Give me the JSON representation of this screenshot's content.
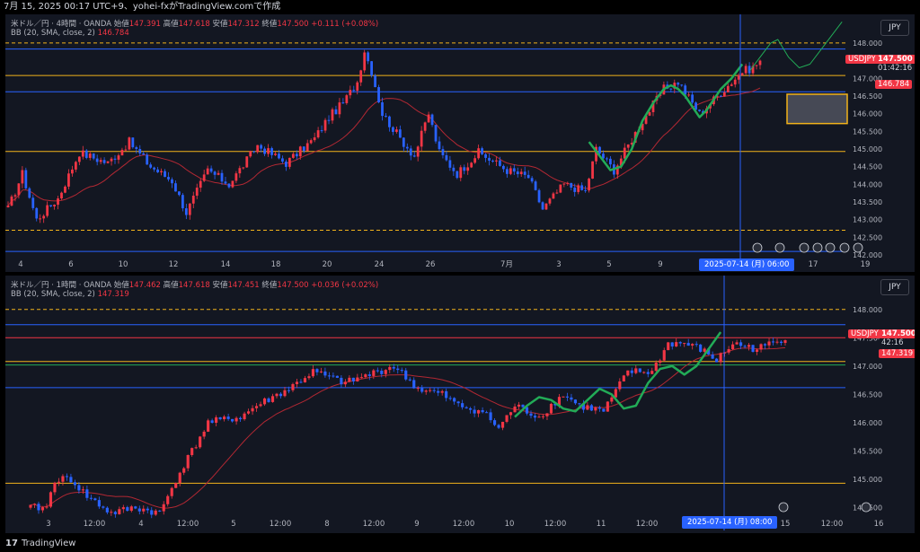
{
  "header": {
    "title": "7月 15, 2025 00:17 UTC+9、yohei-fxがTradingView.comで作成"
  },
  "footer": {
    "logo": "17",
    "brand": "TradingView"
  },
  "colors": {
    "background": "#131722",
    "up": "#f23645",
    "down": "#2962ff",
    "bb_basis": "#b22833",
    "forecast": "#22ab57",
    "support": "#f2b31b",
    "level": "#2962ff"
  },
  "chart_data": [
    {
      "type": "candlestick",
      "panel": "top",
      "legend": {
        "symbol": "米ドル／円 · 4時間 · OANDA",
        "open_label": "始値",
        "open": "147.391",
        "high_label": "高値",
        "high": "147.618",
        "low_label": "安値",
        "low": "147.312",
        "close_label": "終値",
        "close": "147.500",
        "change": "+0.111 (+0.08%)",
        "indicator": "BB (20, SMA, close, 2)",
        "indicator_value": "146.784"
      },
      "currency_button": "JPY",
      "price_ticks": [
        "148.000",
        "147.000",
        "146.500",
        "146.000",
        "145.500",
        "145.000",
        "144.500",
        "144.000",
        "143.500",
        "143.000",
        "142.500",
        "142.000"
      ],
      "ylim": [
        142.0,
        148.1
      ],
      "x_ticks": [
        "4",
        "6",
        "10",
        "12",
        "14",
        "18",
        "20",
        "24",
        "26",
        "7月",
        "3",
        "5",
        "9",
        "17",
        "19"
      ],
      "cursor_label": "2025-07-14 (月)   06:00",
      "tags": {
        "symbol": "USDJPY",
        "price": "147.500",
        "timer": "01:42:16",
        "bb": "146.784"
      },
      "levels": [
        {
          "kind": "dashed",
          "price": 148.0,
          "color": "#f2b31b"
        },
        {
          "kind": "solid",
          "price": 147.83,
          "color": "#2962ff"
        },
        {
          "kind": "solid",
          "price": 147.08,
          "color": "#f2b31b"
        },
        {
          "kind": "solid",
          "price": 146.62,
          "color": "#2962ff"
        },
        {
          "kind": "solid",
          "price": 144.93,
          "color": "#f2b31b"
        },
        {
          "kind": "dashed",
          "price": 142.7,
          "color": "#f2b31b"
        },
        {
          "kind": "solid",
          "price": 142.1,
          "color": "#2962ff"
        }
      ],
      "anchors": [
        [
          0,
          143.3
        ],
        [
          4,
          144.3
        ],
        [
          8,
          143.0
        ],
        [
          14,
          143.6
        ],
        [
          20,
          144.9
        ],
        [
          28,
          144.6
        ],
        [
          34,
          145.2
        ],
        [
          40,
          144.5
        ],
        [
          46,
          144.1
        ],
        [
          50,
          143.2
        ],
        [
          56,
          144.4
        ],
        [
          62,
          144.0
        ],
        [
          70,
          145.1
        ],
        [
          78,
          144.6
        ],
        [
          86,
          145.3
        ],
        [
          90,
          145.9
        ],
        [
          94,
          146.3
        ],
        [
          98,
          146.9
        ],
        [
          100,
          147.8
        ],
        [
          102,
          147.2
        ],
        [
          105,
          146.0
        ],
        [
          110,
          145.3
        ],
        [
          114,
          144.8
        ],
        [
          118,
          146.0
        ],
        [
          121,
          144.9
        ],
        [
          126,
          144.3
        ],
        [
          132,
          144.9
        ],
        [
          140,
          144.4
        ],
        [
          146,
          144.2
        ],
        [
          150,
          143.3
        ],
        [
          156,
          144.0
        ],
        [
          162,
          143.8
        ],
        [
          165,
          145.0
        ],
        [
          170,
          144.4
        ],
        [
          178,
          145.8
        ],
        [
          184,
          146.7
        ],
        [
          188,
          146.9
        ],
        [
          194,
          146.0
        ],
        [
          200,
          146.6
        ],
        [
          206,
          147.2
        ],
        [
          209,
          147.3
        ],
        [
          211,
          147.5
        ]
      ],
      "n_candles": 212,
      "rect_zone": {
        "price_top": 146.55,
        "price_bottom": 145.72,
        "fill": "#5d606b"
      }
    },
    {
      "type": "candlestick",
      "panel": "bottom",
      "legend": {
        "symbol": "米ドル／円 · 1時間 · OANDA",
        "open_label": "始値",
        "open": "147.462",
        "high_label": "高値",
        "high": "147.618",
        "low_label": "安値",
        "low": "147.451",
        "close_label": "終値",
        "close": "147.500",
        "change": "+0.036 (+0.02%)",
        "indicator": "BB (20, SMA, close, 2)",
        "indicator_value": "147.319"
      },
      "currency_button": "JPY",
      "price_ticks": [
        "148.000",
        "147.500",
        "147.000",
        "146.500",
        "146.000",
        "145.500",
        "145.000",
        "144.500"
      ],
      "ylim": [
        144.35,
        148.25
      ],
      "x_ticks": [
        "3",
        "12:00",
        "4",
        "12:00",
        "5",
        "12:00",
        "8",
        "12:00",
        "9",
        "12:00",
        "10",
        "12:00",
        "11",
        "12:00",
        "15",
        "12:00",
        "16"
      ],
      "cursor_label": "2025-07-14 (月)   08:00",
      "tags": {
        "symbol": "USDJPY",
        "price": "147.500",
        "timer": "42:16",
        "bb": "147.319"
      },
      "levels": [
        {
          "kind": "dashed",
          "price": 148.0,
          "color": "#f2b31b"
        },
        {
          "kind": "solid",
          "price": 147.73,
          "color": "#2962ff"
        },
        {
          "kind": "solid",
          "price": 147.5,
          "color": "#f23645"
        },
        {
          "kind": "solid",
          "price": 147.08,
          "color": "#f2b31b"
        },
        {
          "kind": "solid",
          "price": 147.02,
          "color": "#22ab57"
        },
        {
          "kind": "solid",
          "price": 146.62,
          "color": "#2962ff"
        },
        {
          "kind": "solid",
          "price": 144.93,
          "color": "#f2b31b"
        }
      ],
      "anchors": [
        [
          0,
          144.5
        ],
        [
          4,
          144.5
        ],
        [
          6,
          145.0
        ],
        [
          10,
          145.0
        ],
        [
          14,
          144.7
        ],
        [
          20,
          144.4
        ],
        [
          26,
          144.5
        ],
        [
          32,
          144.4
        ],
        [
          36,
          145.0
        ],
        [
          44,
          146.0
        ],
        [
          52,
          146.1
        ],
        [
          56,
          146.3
        ],
        [
          64,
          146.6
        ],
        [
          70,
          146.9
        ],
        [
          78,
          146.7
        ],
        [
          86,
          146.9
        ],
        [
          90,
          147.0
        ],
        [
          96,
          146.6
        ],
        [
          102,
          146.5
        ],
        [
          106,
          146.3
        ],
        [
          112,
          146.2
        ],
        [
          116,
          145.9
        ],
        [
          120,
          146.3
        ],
        [
          126,
          146.1
        ],
        [
          132,
          146.5
        ],
        [
          136,
          146.3
        ],
        [
          142,
          146.2
        ],
        [
          148,
          146.9
        ],
        [
          154,
          146.9
        ],
        [
          158,
          147.4
        ],
        [
          162,
          147.4
        ],
        [
          166,
          147.3
        ],
        [
          170,
          147.1
        ],
        [
          174,
          147.4
        ],
        [
          180,
          147.3
        ],
        [
          187,
          147.5
        ]
      ],
      "n_candles": 188
    }
  ]
}
